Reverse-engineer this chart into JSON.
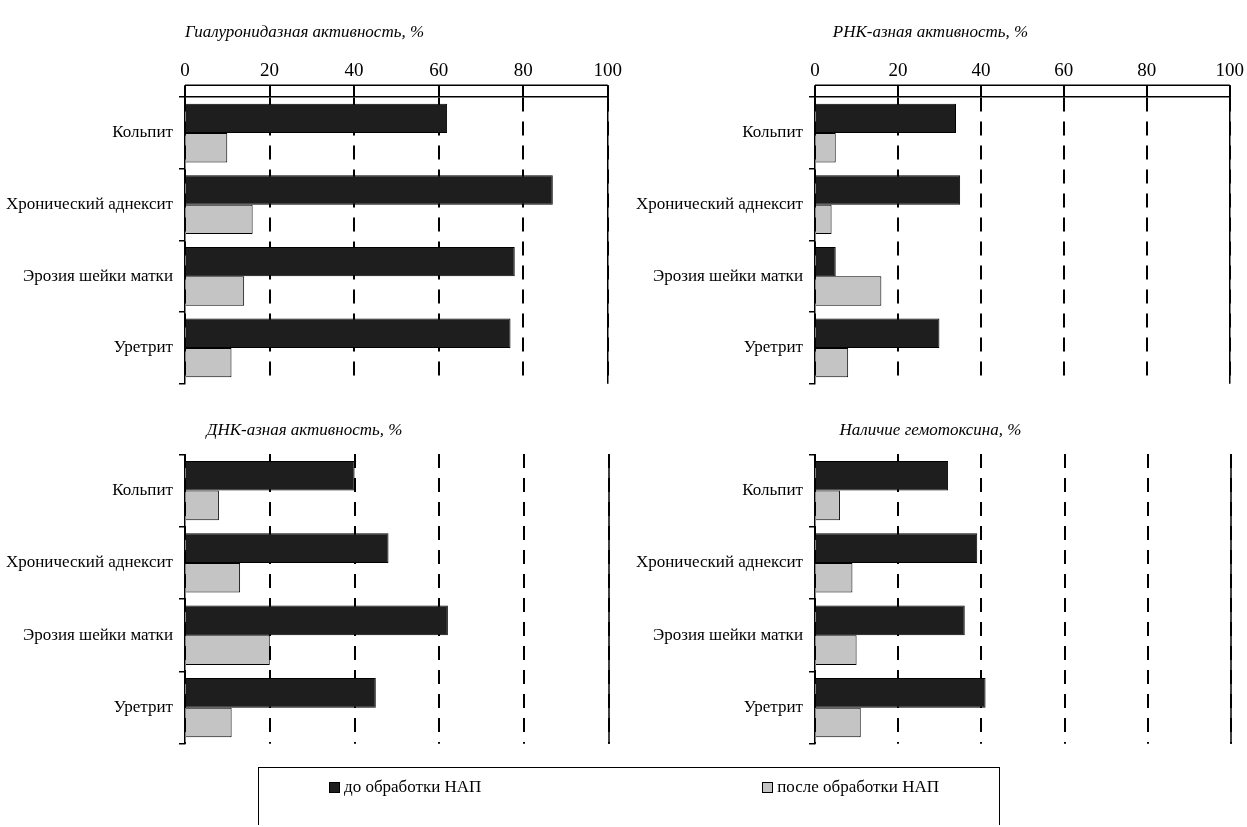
{
  "chart_data": [
    {
      "type": "bar",
      "orientation": "horizontal",
      "title": "Гиалуронидазная активность, %",
      "categories": [
        "Кольпит",
        "Хронический аднексит",
        "Эрозия шейки матки",
        "Уретрит"
      ],
      "series": [
        {
          "name": "до обработки НАП",
          "color": "#1e1e1e",
          "values": [
            62,
            87,
            78,
            77
          ]
        },
        {
          "name": "после обработки НАП",
          "color": "#c4c4c4",
          "values": [
            10,
            16,
            14,
            11
          ]
        }
      ],
      "xlim": [
        0,
        100
      ],
      "xticks": [
        0,
        20,
        40,
        60,
        80,
        100
      ],
      "grid": "x",
      "legend": "bottom"
    },
    {
      "type": "bar",
      "orientation": "horizontal",
      "title": "РНК-азная активность, %",
      "categories": [
        "Кольпит",
        "Хронический аднексит",
        "Эрозия шейки матки",
        "Уретрит"
      ],
      "series": [
        {
          "color": "#1e1e1e",
          "values": [
            34,
            35,
            5,
            30
          ]
        },
        {
          "color": "#c4c4c4",
          "values": [
            5,
            4,
            16,
            8
          ]
        }
      ],
      "xlim": [
        0,
        100
      ],
      "xticks": [
        0,
        20,
        40,
        60,
        80,
        100
      ],
      "grid": "x"
    },
    {
      "type": "bar",
      "orientation": "horizontal",
      "title": "ДНК-азная активность, %",
      "categories": [
        "Кольпит",
        "Хронический аднексит",
        "Эрозия шейки матки",
        "Уретрит"
      ],
      "series": [
        {
          "color": "#1e1e1e",
          "values": [
            40,
            48,
            62,
            45
          ]
        },
        {
          "color": "#c4c4c4",
          "values": [
            8,
            13,
            20,
            11
          ]
        }
      ],
      "xlim": [
        0,
        100
      ],
      "xticks": [
        0,
        20,
        40,
        60,
        80,
        100
      ],
      "grid": "x",
      "tick_labels": "y"
    },
    {
      "type": "bar",
      "orientation": "horizontal",
      "title": "Наличие гемотоксина, %",
      "categories": [
        "Кольпит",
        "Хронический аднексит",
        "Эрозия шейки матки",
        "Уретрит"
      ],
      "series": [
        {
          "color": "#1e1e1e",
          "values": [
            32,
            39,
            36,
            41
          ]
        },
        {
          "color": "#c4c4c4",
          "values": [
            6,
            9,
            10,
            11
          ]
        }
      ],
      "xlim": [
        0,
        100
      ],
      "xticks": [
        0,
        20,
        40,
        60,
        80,
        100
      ],
      "grid": "x",
      "tick_labels": "y"
    }
  ]
}
